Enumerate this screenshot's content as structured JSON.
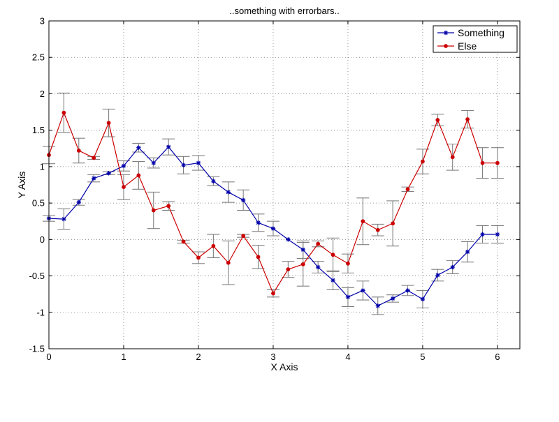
{
  "chart_data": {
    "type": "line",
    "title": "..something with errorbars..",
    "xlabel": "X Axis",
    "ylabel": "Y Axis",
    "xlim": [
      0,
      6.3
    ],
    "ylim": [
      -1.5,
      3
    ],
    "xticks": [
      0,
      1,
      2,
      3,
      4,
      5,
      6
    ],
    "xtick_labels": [
      "0",
      "1",
      "2",
      "3",
      "4",
      "5",
      "6"
    ],
    "yticks": [
      -1.5,
      -1,
      -0.5,
      0,
      0.5,
      1,
      1.5,
      2,
      2.5,
      3
    ],
    "ytick_labels": [
      "-1.5",
      "-1",
      "-0.5",
      "0",
      "0.5",
      "1",
      "1.5",
      "2",
      "2.5",
      "3"
    ],
    "grid": true,
    "legend_position": "top-right",
    "errorbar_color": "#808080",
    "x": [
      0,
      0.2,
      0.4,
      0.6,
      0.8,
      1.0,
      1.2,
      1.4,
      1.6,
      1.8,
      2.0,
      2.2,
      2.4,
      2.6,
      2.8,
      3.0,
      3.2,
      3.4,
      3.6,
      3.8,
      4.0,
      4.2,
      4.4,
      4.6,
      4.8,
      5.0,
      5.2,
      5.4,
      5.6,
      5.8,
      6.0
    ],
    "series": [
      {
        "name": "Something",
        "color": "#0000aa",
        "marker": "star",
        "x": [
          0,
          0.2,
          0.4,
          0.6,
          0.8,
          1.0,
          1.2,
          1.4,
          1.6,
          1.8,
          2.0,
          2.2,
          2.4,
          2.6,
          2.8,
          3.0,
          3.2,
          3.4,
          3.6,
          3.8,
          4.0,
          4.2,
          4.4,
          4.6,
          4.8,
          5.0,
          5.2,
          5.4,
          5.6,
          5.8,
          6.0
        ],
        "y": [
          0.29,
          0.28,
          0.51,
          0.84,
          0.91,
          1.01,
          1.26,
          1.05,
          1.27,
          1.02,
          1.05,
          0.8,
          0.65,
          0.54,
          0.23,
          0.15,
          0.0,
          -0.14,
          -0.38,
          -0.56,
          -0.79,
          -0.7,
          -0.91,
          -0.81,
          -0.7,
          -0.82,
          -0.49,
          -0.38,
          -0.17,
          0.07,
          0.07
        ],
        "err": [
          0.04,
          0.14,
          0.04,
          0.05,
          0.02,
          0.07,
          0.06,
          0.07,
          0.11,
          0.12,
          0.1,
          0.06,
          0.14,
          0.14,
          0.12,
          0.1,
          0.0,
          0.12,
          0.08,
          0.13,
          0.13,
          0.13,
          0.12,
          0.05,
          0.07,
          0.12,
          0.08,
          0.09,
          0.14,
          0.12,
          0.12
        ]
      },
      {
        "name": "Else",
        "color": "#cc0000",
        "marker": "dot",
        "x": [
          0,
          0.2,
          0.4,
          0.6,
          0.8,
          1.0,
          1.2,
          1.4,
          1.6,
          1.8,
          2.0,
          2.2,
          2.4,
          2.6,
          2.8,
          3.0,
          3.2,
          3.4,
          3.6,
          3.8,
          4.0,
          4.2,
          4.4,
          4.6,
          4.8,
          5.0,
          5.2,
          5.4,
          5.6,
          5.8,
          6.0
        ],
        "y": [
          1.16,
          1.74,
          1.22,
          1.12,
          1.6,
          0.72,
          0.88,
          0.4,
          0.46,
          -0.03,
          -0.25,
          -0.09,
          -0.32,
          0.05,
          -0.24,
          -0.74,
          -0.41,
          -0.34,
          -0.06,
          -0.21,
          -0.33,
          0.25,
          0.13,
          0.22,
          0.69,
          1.07,
          1.64,
          1.13,
          1.65,
          1.05,
          1.05
        ],
        "err": [
          0.12,
          0.27,
          0.17,
          0.02,
          0.19,
          0.17,
          0.19,
          0.25,
          0.06,
          0.02,
          0.08,
          0.16,
          0.3,
          0.02,
          0.16,
          0.05,
          0.11,
          0.3,
          0.04,
          0.23,
          0.13,
          0.32,
          0.08,
          0.31,
          0.03,
          0.17,
          0.08,
          0.18,
          0.12,
          0.21,
          0.21
        ]
      }
    ]
  }
}
